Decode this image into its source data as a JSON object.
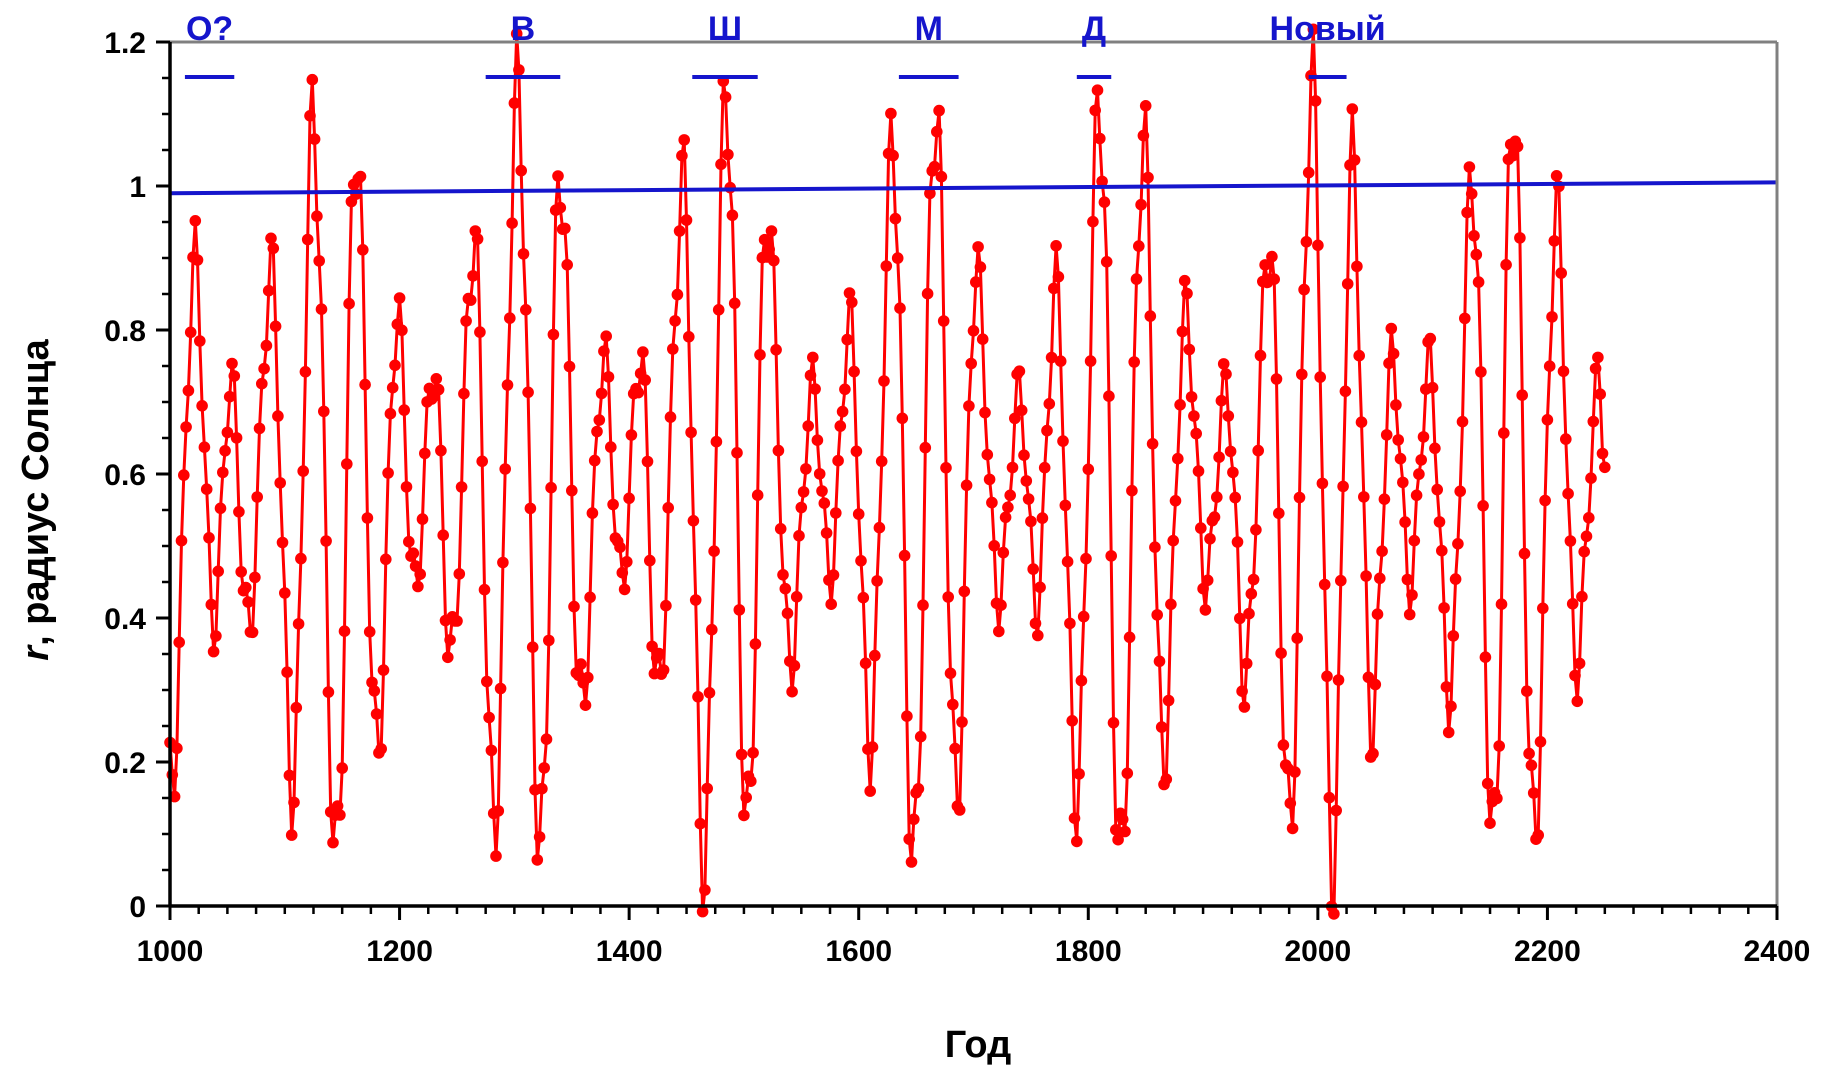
{
  "chart_data": {
    "type": "line",
    "title": "",
    "xlabel": "Год",
    "ylabel_var": "r",
    "ylabel_rest": ", радиус Солнца",
    "xlim": [
      1000,
      2400
    ],
    "ylim": [
      0,
      1.2
    ],
    "x_ticks": [
      1000,
      1200,
      1400,
      1600,
      1800,
      2000,
      2200,
      2400
    ],
    "y_ticks": [
      0,
      0.2,
      0.4,
      0.6,
      0.8,
      1,
      1.2
    ],
    "x_tick_labels": [
      "1000",
      "1200",
      "1400",
      "1600",
      "1800",
      "2000",
      "2200",
      "2400"
    ],
    "y_tick_labels": [
      "0",
      "0.2",
      "0.4",
      "0.6",
      "0.8",
      "1",
      "1.2"
    ],
    "grid": false,
    "colors": {
      "series": "#ff0000",
      "reference": "#1515cc",
      "periods": "#1515cc",
      "frame": "#808080"
    },
    "reference_line": {
      "x": [
        1000,
        2400
      ],
      "y": [
        0.99,
        1.005
      ]
    },
    "periods": [
      {
        "label": "О?",
        "start": 1013,
        "end": 1056
      },
      {
        "label": "В",
        "start": 1275,
        "end": 1340
      },
      {
        "label": "Ш",
        "start": 1455,
        "end": 1512
      },
      {
        "label": "М",
        "start": 1635,
        "end": 1687
      },
      {
        "label": "Д",
        "start": 1790,
        "end": 1820
      },
      {
        "label": "Новый",
        "start": 1992,
        "end": 2025
      }
    ],
    "series": [
      {
        "x_range": [
          1000,
          2250
        ],
        "step": 2,
        "envelope": [
          [
            1000,
            0.15
          ],
          [
            1022,
            0.89
          ],
          [
            1038,
            0.4
          ],
          [
            1053,
            0.73
          ],
          [
            1068,
            0.38
          ],
          [
            1088,
            0.88
          ],
          [
            1107,
            0.17
          ],
          [
            1125,
            1.09
          ],
          [
            1145,
            0.05
          ],
          [
            1162,
            1.07
          ],
          [
            1180,
            0.21
          ],
          [
            1198,
            0.82
          ],
          [
            1213,
            0.44
          ],
          [
            1230,
            0.75
          ],
          [
            1245,
            0.34
          ],
          [
            1265,
            0.93
          ],
          [
            1282,
            0.11
          ],
          [
            1303,
            1.13
          ],
          [
            1323,
            0.07
          ],
          [
            1340,
            1.03
          ],
          [
            1358,
            0.27
          ],
          [
            1378,
            0.76
          ],
          [
            1393,
            0.45
          ],
          [
            1410,
            0.77
          ],
          [
            1425,
            0.29
          ],
          [
            1447,
            1.0
          ],
          [
            1465,
            0.07
          ],
          [
            1485,
            1.13
          ],
          [
            1503,
            0.09
          ],
          [
            1520,
            0.97
          ],
          [
            1540,
            0.34
          ],
          [
            1560,
            0.72
          ],
          [
            1575,
            0.46
          ],
          [
            1592,
            0.81
          ],
          [
            1610,
            0.23
          ],
          [
            1630,
            1.06
          ],
          [
            1648,
            0.05
          ],
          [
            1667,
            1.12
          ],
          [
            1685,
            0.15
          ],
          [
            1702,
            0.88
          ],
          [
            1722,
            0.43
          ],
          [
            1740,
            0.71
          ],
          [
            1755,
            0.42
          ],
          [
            1772,
            0.86
          ],
          [
            1790,
            0.16
          ],
          [
            1810,
            1.12
          ],
          [
            1828,
            0.04
          ],
          [
            1848,
            1.07
          ],
          [
            1865,
            0.21
          ],
          [
            1885,
            0.82
          ],
          [
            1903,
            0.45
          ],
          [
            1920,
            0.72
          ],
          [
            1937,
            0.32
          ],
          [
            1958,
            0.93
          ],
          [
            1975,
            0.1
          ],
          [
            1995,
            1.14
          ],
          [
            2013,
            0.06
          ],
          [
            2030,
            1.03
          ],
          [
            2047,
            0.26
          ],
          [
            2065,
            0.76
          ],
          [
            2080,
            0.45
          ],
          [
            2097,
            0.75
          ],
          [
            2115,
            0.3
          ],
          [
            2135,
            1.01
          ],
          [
            2153,
            0.07
          ],
          [
            2170,
            1.13
          ],
          [
            2188,
            0.09
          ],
          [
            2208,
            0.96
          ],
          [
            2225,
            0.34
          ],
          [
            2245,
            0.73
          ],
          [
            2250,
            0.63
          ]
        ]
      }
    ]
  }
}
